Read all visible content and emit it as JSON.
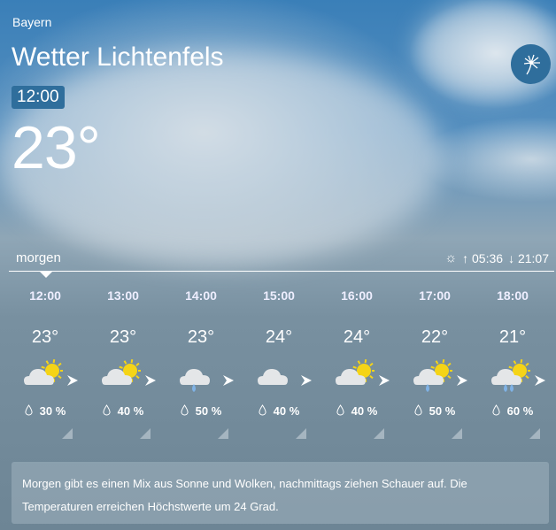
{
  "header": {
    "region": "Bayern",
    "title": "Wetter Lichtenfels",
    "time": "12:00",
    "temperature": "23°",
    "logo_icon": "dandelion-icon"
  },
  "day": {
    "label": "morgen",
    "sunrise": "05:36",
    "sunset": "21:07",
    "sunrise_arrow": "↑",
    "sunset_arrow": "↓"
  },
  "hours": [
    {
      "time": "12:00",
      "temp": "23°",
      "icon": "partly-sunny",
      "rain": "30 %"
    },
    {
      "time": "13:00",
      "temp": "23°",
      "icon": "partly-sunny",
      "rain": "40 %"
    },
    {
      "time": "14:00",
      "temp": "23°",
      "icon": "cloud-rain",
      "rain": "50 %"
    },
    {
      "time": "15:00",
      "temp": "24°",
      "icon": "cloudy",
      "rain": "40 %"
    },
    {
      "time": "16:00",
      "temp": "24°",
      "icon": "partly-sunny",
      "rain": "40 %"
    },
    {
      "time": "17:00",
      "temp": "22°",
      "icon": "sun-cloud-rain",
      "rain": "50 %"
    },
    {
      "time": "18:00",
      "temp": "21°",
      "icon": "sun-cloud-rain-heavy",
      "rain": "60 %"
    }
  ],
  "summary": "Morgen gibt es einen Mix aus Sonne und Wolken, nachmittags ziehen Schauer auf. Die Temperaturen erreichen Höchstwerte um 24 Grad.",
  "colors": {
    "accent": "#2f6e9c",
    "sun": "#f5d417",
    "rain": "#7fb2e5"
  }
}
